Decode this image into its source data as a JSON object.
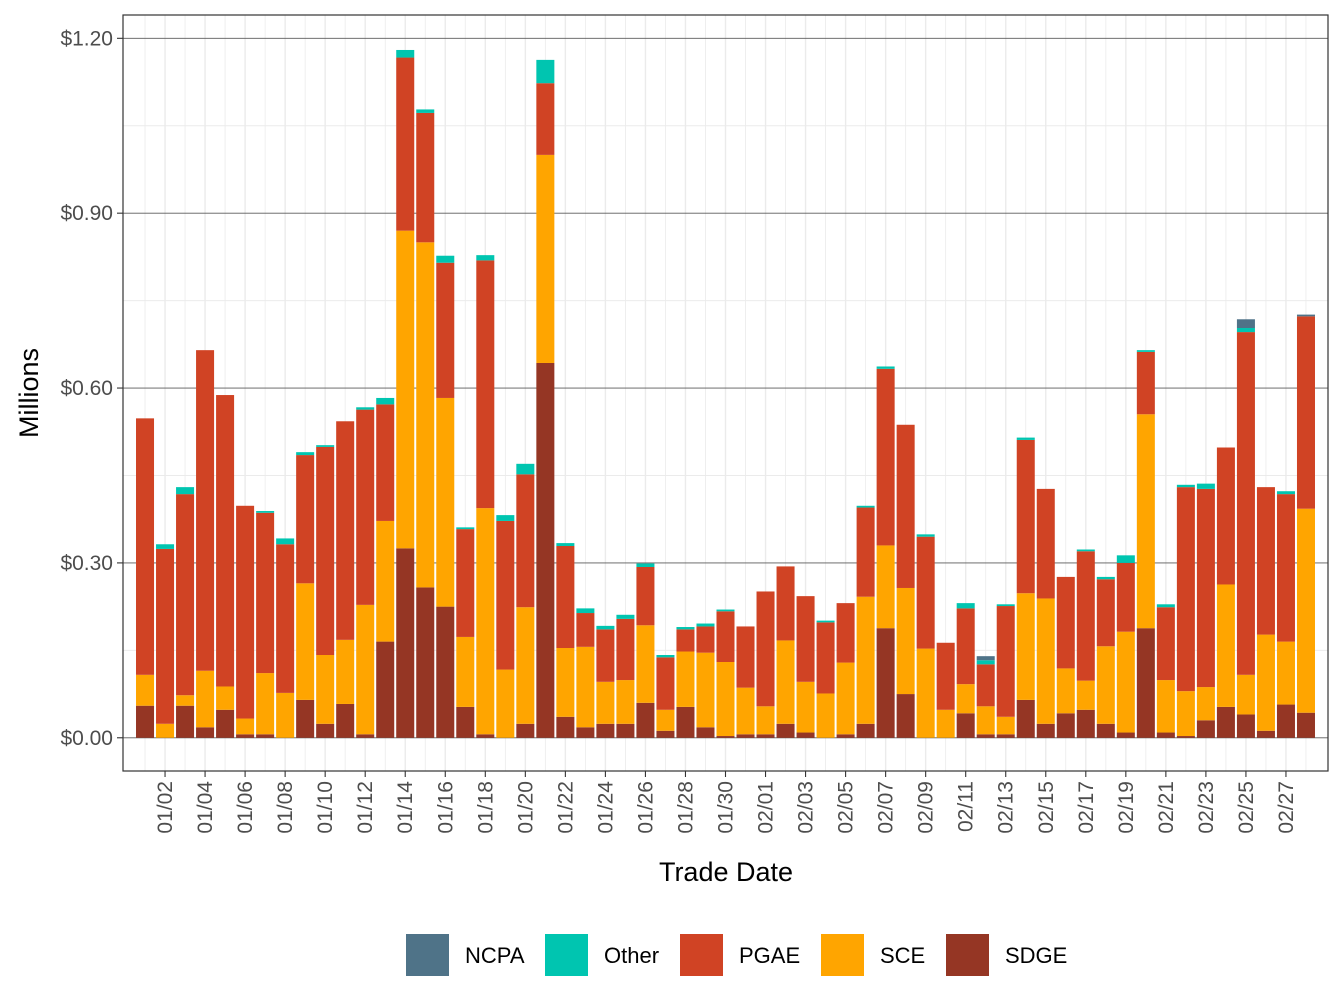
{
  "chart_data": {
    "type": "bar",
    "stacked": true,
    "xlabel": "Trade Date",
    "ylabel": "Millions",
    "ylim": [
      -0.057,
      1.24
    ],
    "y_ticks": [
      "$0.00",
      "$0.30",
      "$0.60",
      "$0.90",
      "$1.20"
    ],
    "y_tick_values": [
      0,
      0.3,
      0.6,
      0.9,
      1.2
    ],
    "x_tick_labels": [
      "01/02",
      "01/04",
      "01/06",
      "01/08",
      "01/10",
      "01/12",
      "01/14",
      "01/16",
      "01/18",
      "01/20",
      "01/22",
      "01/24",
      "01/26",
      "01/28",
      "01/30",
      "02/01",
      "02/03",
      "02/05",
      "02/07",
      "02/09",
      "02/11",
      "02/13",
      "02/15",
      "02/17",
      "02/19",
      "02/21",
      "02/23",
      "02/25",
      "02/27"
    ],
    "grid": true,
    "legend_position": "bottom",
    "categories": [
      "01/01",
      "01/02",
      "01/03",
      "01/04",
      "01/05",
      "01/06",
      "01/07",
      "01/08",
      "01/09",
      "01/10",
      "01/11",
      "01/12",
      "01/13",
      "01/14",
      "01/15",
      "01/16",
      "01/17",
      "01/18",
      "01/19",
      "01/20",
      "01/21",
      "01/22",
      "01/23",
      "01/24",
      "01/25",
      "01/26",
      "01/27",
      "01/28",
      "01/29",
      "01/30",
      "01/31",
      "02/01",
      "02/02",
      "02/03",
      "02/04",
      "02/05",
      "02/06",
      "02/07",
      "02/08",
      "02/09",
      "02/10",
      "02/11",
      "02/12",
      "02/13",
      "02/14",
      "02/15",
      "02/16",
      "02/17",
      "02/18",
      "02/19",
      "02/20",
      "02/21",
      "02/22",
      "02/23",
      "02/24",
      "02/25",
      "02/26",
      "02/27",
      "02/28"
    ],
    "series": [
      {
        "name": "SDGE",
        "color": "#953624",
        "values": [
          0.055,
          0.0,
          0.055,
          0.018,
          0.048,
          0.006,
          0.006,
          0.0,
          0.065,
          0.024,
          0.058,
          0.006,
          0.165,
          0.325,
          0.258,
          0.225,
          0.053,
          0.006,
          0.0,
          0.024,
          0.643,
          0.036,
          0.018,
          0.024,
          0.024,
          0.06,
          0.012,
          0.053,
          0.018,
          0.003,
          0.006,
          0.006,
          0.024,
          0.009,
          0.0,
          0.006,
          0.024,
          0.188,
          0.075,
          0.0,
          0.0,
          0.042,
          0.006,
          0.006,
          0.065,
          0.024,
          0.042,
          0.048,
          0.024,
          0.009,
          0.188,
          0.009,
          0.003,
          0.03,
          0.053,
          0.04,
          0.012,
          0.057,
          0.043
        ]
      },
      {
        "name": "SCE",
        "color": "#FFA500",
        "values": [
          0.053,
          0.024,
          0.018,
          0.097,
          0.04,
          0.027,
          0.105,
          0.077,
          0.2,
          0.118,
          0.11,
          0.222,
          0.207,
          0.545,
          0.592,
          0.358,
          0.12,
          0.388,
          0.117,
          0.2,
          0.357,
          0.118,
          0.138,
          0.072,
          0.075,
          0.133,
          0.036,
          0.095,
          0.128,
          0.127,
          0.08,
          0.048,
          0.143,
          0.087,
          0.076,
          0.123,
          0.218,
          0.142,
          0.182,
          0.153,
          0.048,
          0.05,
          0.048,
          0.03,
          0.183,
          0.215,
          0.077,
          0.05,
          0.133,
          0.173,
          0.367,
          0.09,
          0.077,
          0.057,
          0.21,
          0.068,
          0.165,
          0.108,
          0.35
        ]
      },
      {
        "name": "PGAE",
        "color": "#D04324",
        "values": [
          0.44,
          0.3,
          0.345,
          0.55,
          0.5,
          0.365,
          0.275,
          0.255,
          0.22,
          0.357,
          0.375,
          0.335,
          0.2,
          0.297,
          0.222,
          0.232,
          0.185,
          0.425,
          0.255,
          0.228,
          0.123,
          0.175,
          0.058,
          0.09,
          0.105,
          0.1,
          0.09,
          0.038,
          0.045,
          0.087,
          0.105,
          0.197,
          0.127,
          0.147,
          0.122,
          0.102,
          0.153,
          0.303,
          0.28,
          0.192,
          0.115,
          0.13,
          0.072,
          0.19,
          0.263,
          0.188,
          0.157,
          0.222,
          0.115,
          0.118,
          0.107,
          0.125,
          0.35,
          0.34,
          0.235,
          0.588,
          0.253,
          0.253,
          0.33
        ]
      },
      {
        "name": "Other",
        "color": "#00C5B0",
        "values": [
          0.0,
          0.008,
          0.012,
          0.0,
          0.0,
          0.0,
          0.003,
          0.01,
          0.005,
          0.003,
          0.0,
          0.004,
          0.011,
          0.013,
          0.006,
          0.012,
          0.003,
          0.009,
          0.01,
          0.018,
          0.04,
          0.005,
          0.008,
          0.006,
          0.007,
          0.006,
          0.004,
          0.004,
          0.005,
          0.003,
          0.0,
          0.0,
          0.0,
          0.0,
          0.003,
          0.0,
          0.003,
          0.004,
          0.0,
          0.004,
          0.0,
          0.009,
          0.007,
          0.003,
          0.004,
          0.0,
          0.0,
          0.003,
          0.004,
          0.013,
          0.003,
          0.005,
          0.004,
          0.009,
          0.0,
          0.007,
          0.0,
          0.005,
          0.0
        ]
      },
      {
        "name": "NCPA",
        "color": "#4F7388",
        "values": [
          0.0,
          0.0,
          0.0,
          0.0,
          0.0,
          0.0,
          0.0,
          0.0,
          0.0,
          0.0,
          0.0,
          0.0,
          0.0,
          0.0,
          0.0,
          0.0,
          0.0,
          0.0,
          0.0,
          0.0,
          0.0,
          0.0,
          0.0,
          0.0,
          0.0,
          0.0,
          0.0,
          0.0,
          0.0,
          0.0,
          0.0,
          0.0,
          0.0,
          0.0,
          0.0,
          0.0,
          0.0,
          0.0,
          0.0,
          0.0,
          0.0,
          0.0,
          0.007,
          0.0,
          0.0,
          0.0,
          0.0,
          0.0,
          0.0,
          0.0,
          0.0,
          0.0,
          0.0,
          0.0,
          0.0,
          0.015,
          0.0,
          0.0,
          0.003
        ]
      }
    ],
    "legend": [
      "NCPA",
      "Other",
      "PGAE",
      "SCE",
      "SDGE"
    ]
  }
}
